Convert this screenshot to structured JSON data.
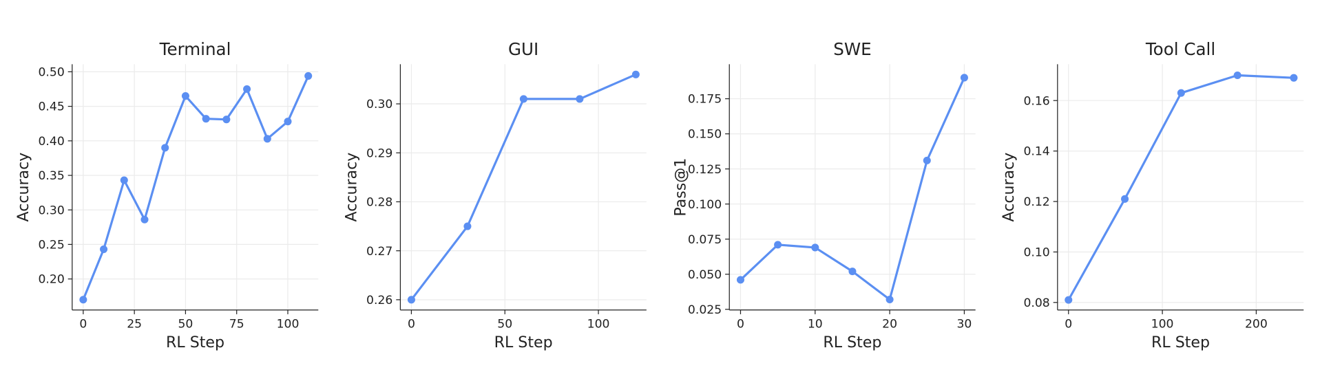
{
  "chart_data": [
    {
      "type": "line",
      "title": "Terminal",
      "xlabel": "RL Step",
      "ylabel": "Accuracy",
      "color": "#5b8ff2",
      "grid": true,
      "x": [
        0,
        10,
        20,
        30,
        40,
        50,
        60,
        70,
        80,
        90,
        100,
        110
      ],
      "values": [
        0.17,
        0.243,
        0.343,
        0.286,
        0.39,
        0.465,
        0.432,
        0.431,
        0.475,
        0.403,
        0.428,
        0.494
      ],
      "xlim": [
        -5.4,
        114.9
      ],
      "ylim": [
        0.155,
        0.511
      ],
      "xticks": [
        0,
        25,
        50,
        75,
        100
      ],
      "yticks": [
        {
          "value": 0.2,
          "label": "0.20"
        },
        0.25,
        {
          "value": 0.3,
          "label": "0.30"
        },
        0.35,
        {
          "value": 0.4,
          "label": "0.40"
        },
        0.45,
        {
          "value": 0.5,
          "label": "0.50"
        }
      ]
    },
    {
      "type": "line",
      "title": "GUI",
      "xlabel": "RL Step",
      "ylabel": "Accuracy",
      "color": "#5b8ff2",
      "grid": true,
      "x": [
        0,
        30,
        60,
        90,
        120
      ],
      "values": [
        0.26,
        0.275,
        0.301,
        0.301,
        0.306
      ],
      "xlim": [
        -5.9,
        125.7
      ],
      "ylim": [
        0.2579,
        0.3081
      ],
      "xticks": [
        0,
        50,
        100
      ],
      "yticks": [
        0.26,
        0.27,
        0.28,
        0.29,
        {
          "value": 0.3,
          "label": "0.30"
        }
      ]
    },
    {
      "type": "line",
      "title": "SWE",
      "xlabel": "RL Step",
      "ylabel": "Pass@1",
      "color": "#5b8ff2",
      "grid": true,
      "x": [
        0,
        5,
        10,
        15,
        20,
        25,
        30
      ],
      "values": [
        0.046,
        0.071,
        0.069,
        0.052,
        0.032,
        0.131,
        0.19
      ],
      "xlim": [
        -1.5,
        31.5
      ],
      "ylim": [
        0.0245,
        0.1996
      ],
      "xticks": [
        0,
        10,
        20,
        30
      ],
      "yticks": [
        0.025,
        {
          "value": 0.05,
          "label": "0.050"
        },
        0.075,
        {
          "value": 0.1,
          "label": "0.100"
        },
        0.125,
        {
          "value": 0.15,
          "label": "0.150"
        },
        0.175
      ]
    },
    {
      "type": "line",
      "title": "Tool Call",
      "xlabel": "RL Step",
      "ylabel": "Accuracy",
      "color": "#5b8ff2",
      "grid": true,
      "x": [
        0,
        60,
        120,
        180,
        240
      ],
      "values": [
        0.081,
        0.121,
        0.163,
        0.17,
        0.169
      ],
      "xlim": [
        -11.7,
        250.5
      ],
      "ylim": [
        0.077,
        0.1744
      ],
      "xticks": [
        0,
        100,
        200
      ],
      "yticks": [
        0.08,
        {
          "value": 0.1,
          "label": "0.10"
        },
        0.12,
        0.14,
        0.16
      ]
    }
  ]
}
